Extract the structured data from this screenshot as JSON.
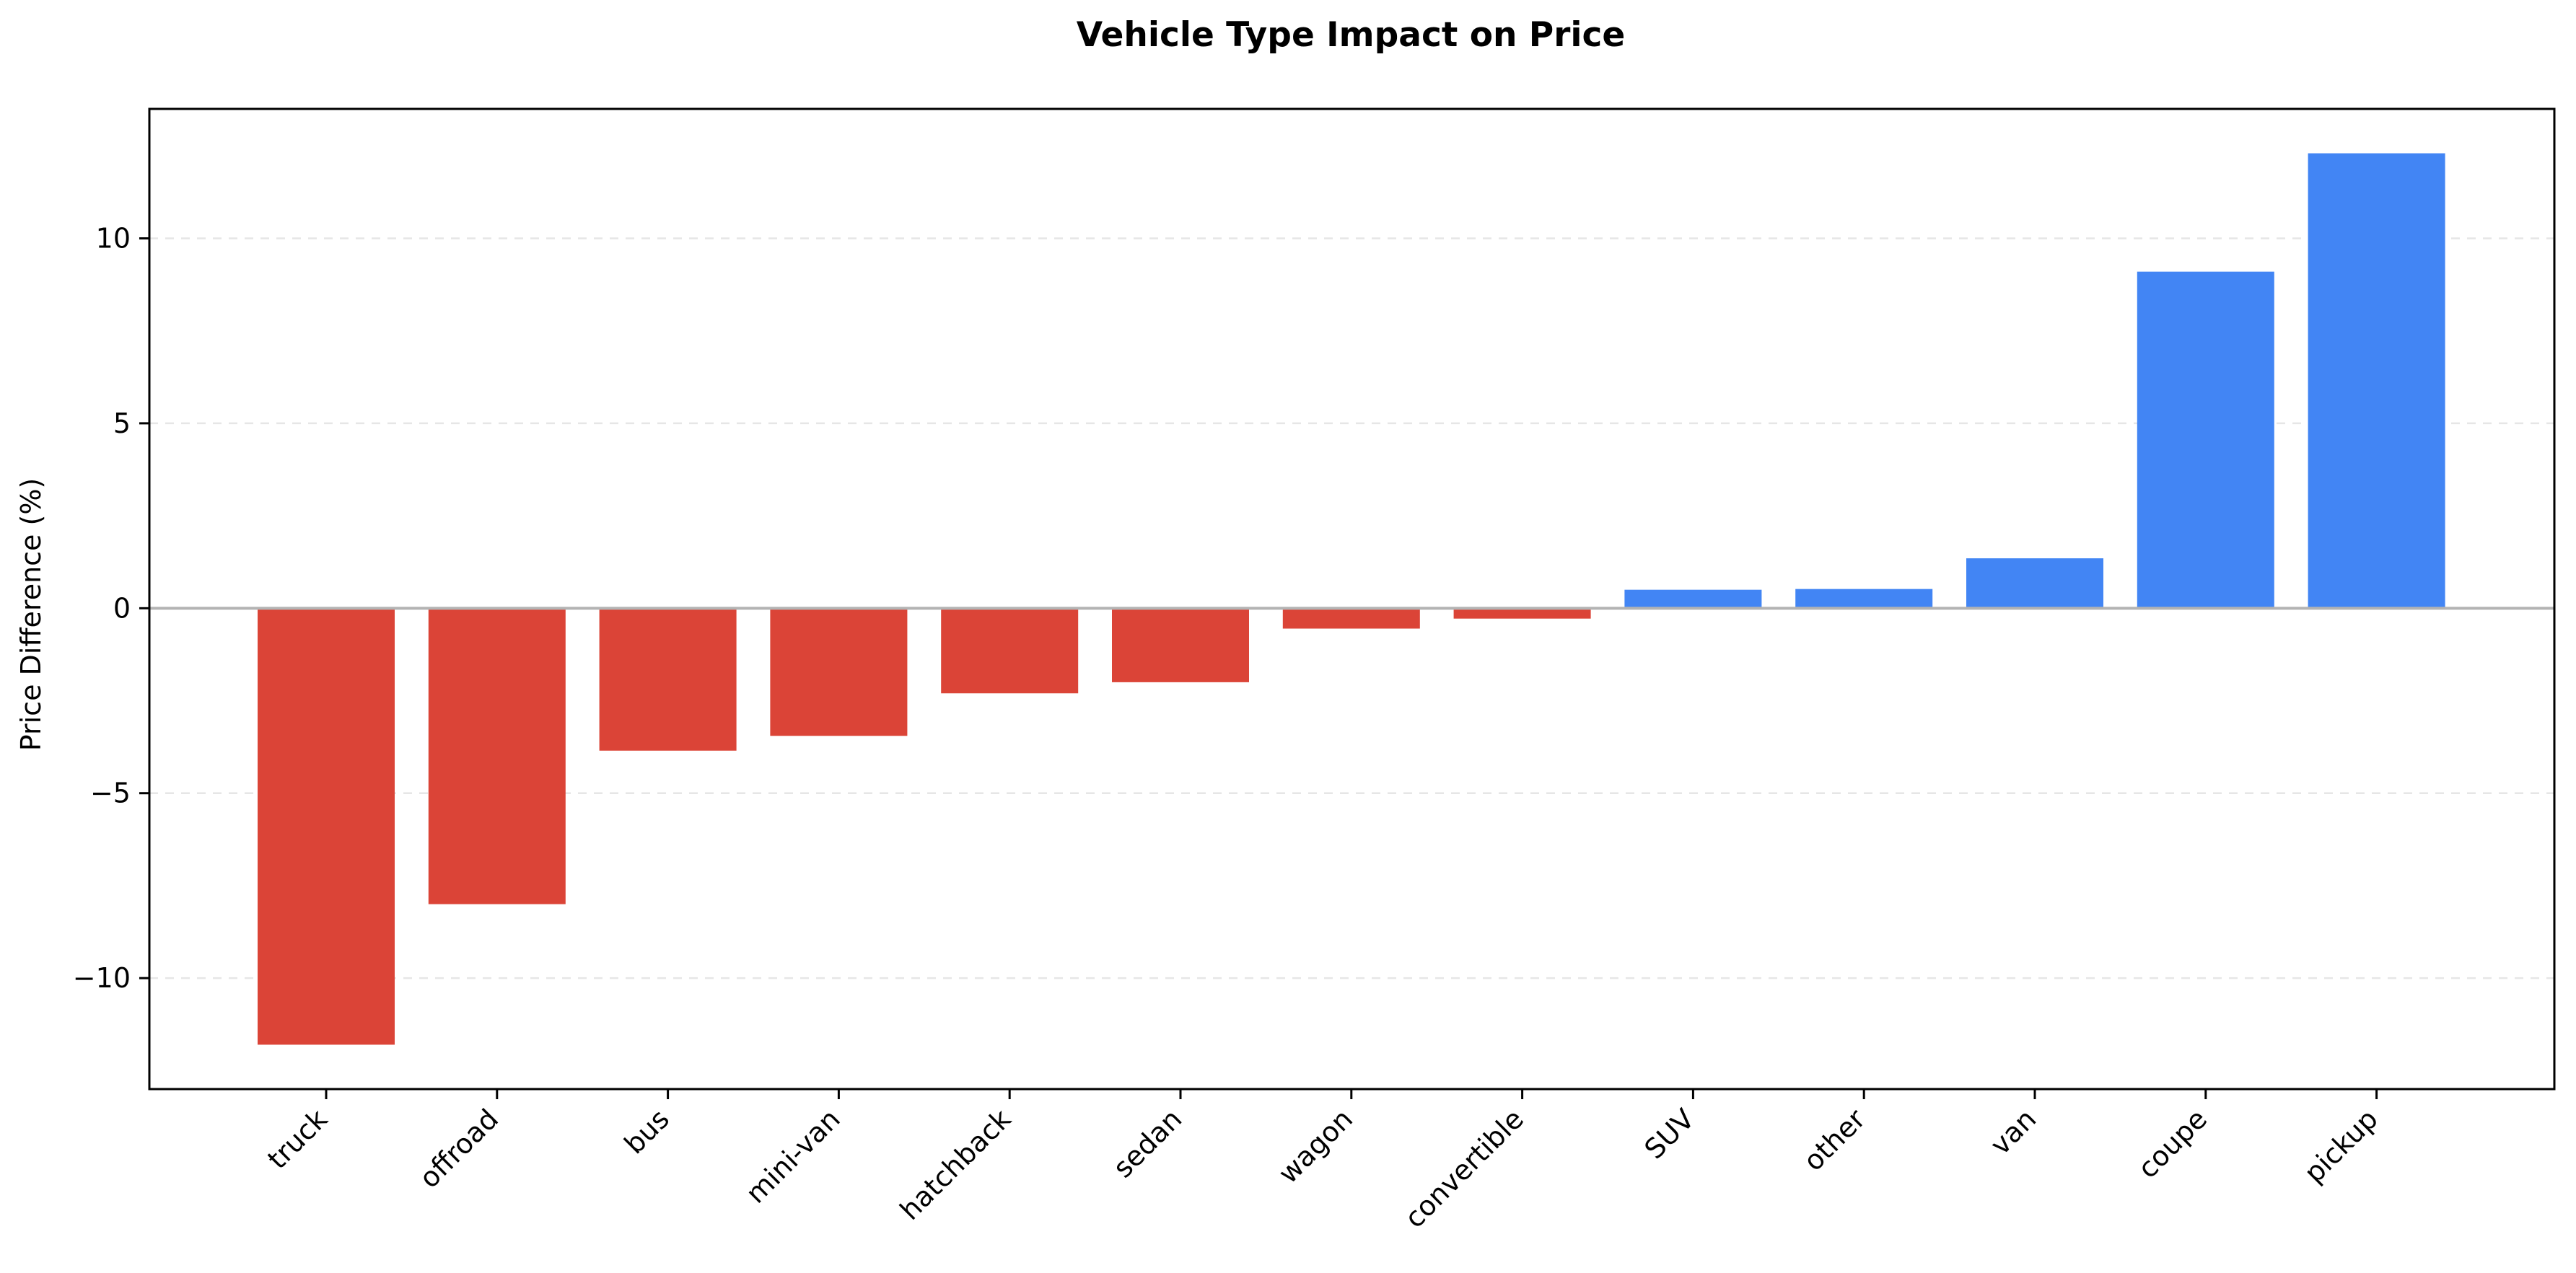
{
  "chart_data": {
    "type": "bar",
    "title": "Vehicle Type Impact on Price",
    "xlabel": "",
    "ylabel": "Price Difference (%)",
    "categories": [
      "truck",
      "offroad",
      "bus",
      "mini-van",
      "hatchback",
      "sedan",
      "wagon",
      "convertible",
      "SUV",
      "other",
      "van",
      "coupe",
      "pickup"
    ],
    "values": [
      -11.8,
      -8.0,
      -3.85,
      -3.45,
      -2.3,
      -2.0,
      -0.55,
      -0.28,
      0.5,
      0.52,
      1.35,
      9.1,
      12.3
    ],
    "ylim": [
      -13.0,
      13.5
    ],
    "yticks": [
      -10,
      -5,
      0,
      5,
      10
    ],
    "ytick_labels": [
      "−10",
      "−5",
      "0",
      "5",
      "10"
    ],
    "grid": "y dashed",
    "zero_line": true,
    "colors": {
      "negative": "#db4437",
      "positive": "#4285f4"
    }
  }
}
